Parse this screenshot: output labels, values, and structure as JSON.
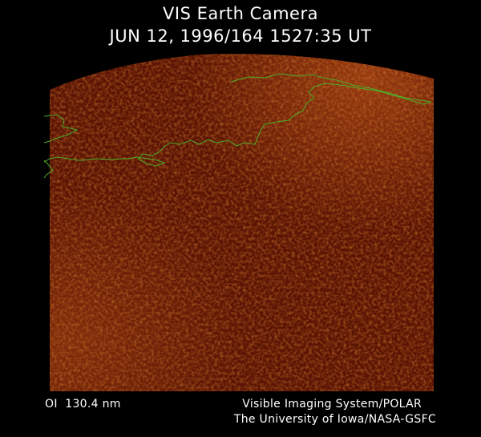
{
  "header": {
    "title": "VIS Earth Camera",
    "timestamp": "JUN 12, 1996/164 1527:35 UT"
  },
  "footer": {
    "wavelength": "OI  130.4 nm",
    "credit_line_1": "Visible Imaging System/POLAR",
    "credit_line_2": "The University of Iowa/NASA-GSFC"
  }
}
